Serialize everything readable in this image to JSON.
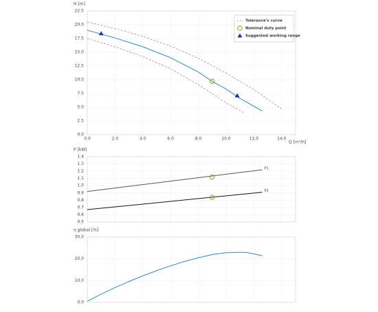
{
  "chart_data": [
    {
      "type": "line",
      "y_label": "H [m]",
      "x_label": "Q [m³/h]",
      "xlim": [
        0,
        15
      ],
      "xticks": [
        {
          "value": 0,
          "label": "0.0"
        },
        {
          "value": 2,
          "label": "2.0"
        },
        {
          "value": 4,
          "label": "4.0"
        },
        {
          "value": 6,
          "label": "6.0"
        },
        {
          "value": 8,
          "label": "8.0"
        },
        {
          "value": 10,
          "label": "10.0"
        },
        {
          "value": 12,
          "label": "12.0"
        },
        {
          "value": 14,
          "label": "14.0"
        }
      ],
      "ylim": [
        0,
        22.5
      ],
      "yticks": [
        {
          "value": 0,
          "label": "0.0"
        },
        2.5,
        {
          "value": 5,
          "label": "5.0"
        },
        7.5,
        {
          "value": 10,
          "label": "10.0"
        },
        12.5,
        {
          "value": 15,
          "label": "15.0"
        },
        17.5,
        {
          "value": 20,
          "label": "20.0"
        },
        22.5
      ],
      "grid": true,
      "legend": "upper right",
      "series": [
        {
          "name": "Tolerance's curve",
          "color": "#888888",
          "dashed": true,
          "x": [
            0,
            2,
            4,
            6,
            8,
            10,
            12,
            14
          ],
          "values": [
            20.5,
            19.3,
            17.9,
            16.1,
            13.9,
            11.2,
            8.2,
            4.7
          ]
        },
        {
          "color": "#888888",
          "dashed": true,
          "x": [
            0,
            2,
            4,
            6,
            8,
            10,
            11.3
          ],
          "values": [
            17.5,
            16.0,
            14.2,
            12.0,
            9.1,
            5.8,
            4.0
          ]
        },
        {
          "color": "#2a8fc4",
          "x": [
            0,
            2,
            4,
            6,
            8,
            9,
            10,
            11,
            12.6
          ],
          "values": [
            19.0,
            17.6,
            16.0,
            14.0,
            11.4,
            9.7,
            8.3,
            6.6,
            4.3
          ]
        }
      ],
      "points": [
        {
          "name": "Nominal duty point",
          "marker": "circle",
          "color": "#8db32d",
          "x": [
            9
          ],
          "values": [
            9.7
          ]
        },
        {
          "name": "Suggested working range",
          "marker": "triangle",
          "color": "#1f2fb5",
          "x": [
            1,
            10.8
          ],
          "values": [
            18.4,
            7.1
          ]
        }
      ]
    },
    {
      "type": "line",
      "y_label": "P [kW]",
      "xlim": [
        0,
        15
      ],
      "xticks": [
        0,
        2,
        4,
        6,
        8,
        10,
        12,
        14
      ],
      "ylim": [
        0.5,
        1.4
      ],
      "yticks": [
        0.5,
        0.6,
        0.7,
        0.8,
        0.9,
        {
          "value": 1,
          "label": "1.0"
        },
        1.1,
        1.2,
        1.3,
        1.4
      ],
      "grid": true,
      "series": [
        {
          "name": "P1",
          "color": "#555555",
          "x": [
            0,
            12.6
          ],
          "values": [
            0.92,
            1.22
          ]
        },
        {
          "name": "P2",
          "color": "#111111",
          "x": [
            0,
            12.6
          ],
          "values": [
            0.67,
            0.91
          ]
        }
      ],
      "points": [
        {
          "marker": "circle",
          "color": "#8db32d",
          "x": [
            9,
            9
          ],
          "values": [
            1.12,
            0.84
          ]
        }
      ]
    },
    {
      "type": "line",
      "y_label": "η global [%]",
      "xlim": [
        0,
        15
      ],
      "xticks": [
        0,
        2,
        4,
        6,
        8,
        10,
        12,
        14
      ],
      "ylim": [
        0,
        30
      ],
      "yticks": [
        {
          "value": 0,
          "label": "0.0"
        },
        {
          "value": 10,
          "label": "10.0"
        },
        {
          "value": 20,
          "label": "20.0"
        },
        {
          "value": 30,
          "label": "30.0"
        }
      ],
      "grid": true,
      "series": [
        {
          "color": "#2a8fc4",
          "x": [
            0,
            1,
            2,
            3,
            4,
            5,
            6,
            7,
            8,
            9,
            10,
            11,
            11.5,
            12,
            12.6
          ],
          "values": [
            0.5,
            3.8,
            6.8,
            9.6,
            12.2,
            14.6,
            16.8,
            18.8,
            20.5,
            22.0,
            22.8,
            23.0,
            22.9,
            22.3,
            21.4
          ]
        }
      ]
    }
  ]
}
